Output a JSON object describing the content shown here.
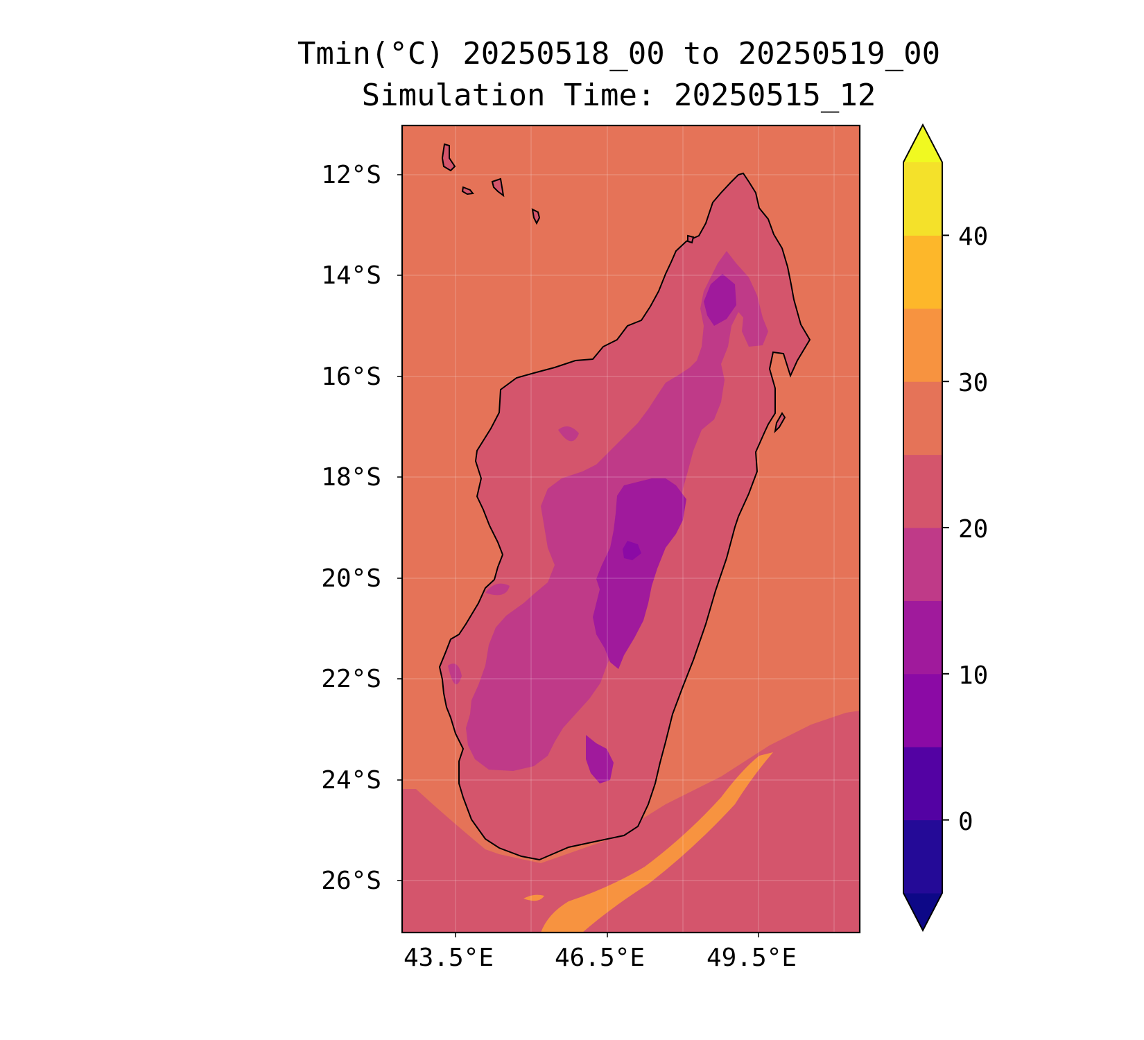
{
  "title": "Tmin(°C) 20250518_00 to 20250519_00",
  "subtitle": "Simulation Time: 20250515_12",
  "map": {
    "extent": {
      "lon": [
        42.2,
        51.3
      ],
      "lat": [
        -27.0,
        -11.0
      ]
    },
    "projection": "PlateCarree",
    "coastlines": true,
    "gridlines": true,
    "lat_ticks": [
      "12°S",
      "14°S",
      "16°S",
      "18°S",
      "20°S",
      "22°S",
      "24°S",
      "26°S"
    ],
    "lon_ticks": [
      "43.5°E",
      "46.5°E",
      "49.5°E"
    ]
  },
  "colorbar": {
    "orientation": "vertical",
    "extend": "both",
    "colormap": "plasma",
    "levels": [
      -5,
      0,
      5,
      10,
      15,
      20,
      25,
      30,
      35,
      40,
      45
    ],
    "tick_labels": [
      "0",
      "10",
      "20",
      "30",
      "40"
    ],
    "colors": [
      "#0d0887",
      "#240a97",
      "#5302a3",
      "#8b0aa5",
      "#a01a9c",
      "#bf3a88",
      "#d4556c",
      "#e57358",
      "#f79340",
      "#fdb72a",
      "#f4e12a",
      "#f0f921"
    ]
  },
  "field": {
    "variable": "Tmin",
    "units": "°C",
    "ocean_north_band": [
      25,
      30
    ],
    "ocean_south_band": [
      20,
      25
    ],
    "coastal_lowland_band": [
      20,
      25
    ],
    "highland_band": [
      15,
      20
    ],
    "central_plateau_band": [
      10,
      15
    ],
    "coldest_spot_band": [
      5,
      10
    ],
    "warm_current_band": [
      30,
      35
    ]
  }
}
